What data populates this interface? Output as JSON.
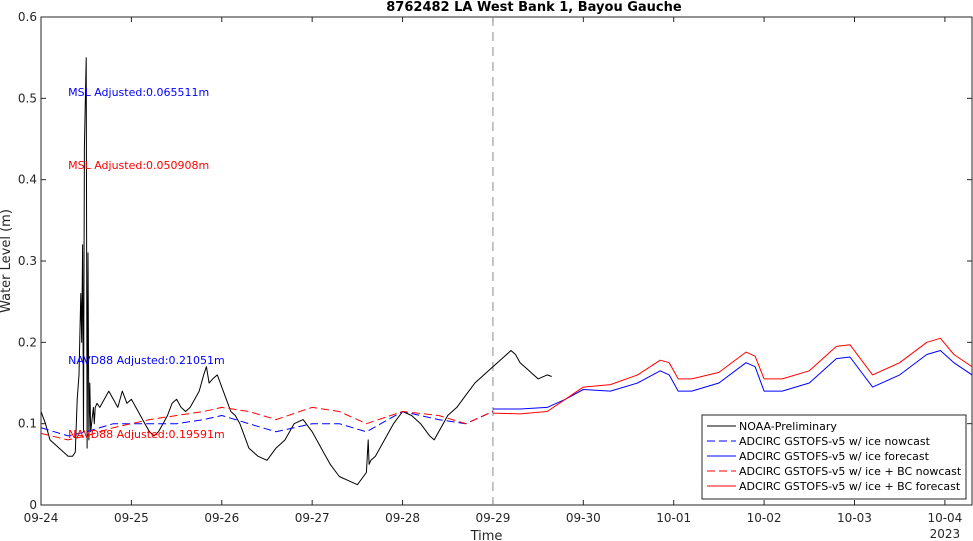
{
  "chart_data": {
    "type": "line",
    "title": "8762482 LA West Bank 1, Bayou Gauche",
    "xlabel": "Time",
    "ylabel": "Water Level (m)",
    "year_label": "2023",
    "xlim": [
      0,
      10.3
    ],
    "ylim": [
      0,
      0.6
    ],
    "y_ticks": [
      0,
      0.1,
      0.2,
      0.3,
      0.4,
      0.5,
      0.6
    ],
    "y_tick_labels": [
      "0",
      "0.1",
      "0.2",
      "0.3",
      "0.4",
      "0.5",
      "0.6"
    ],
    "x_ticks": [
      0,
      1,
      2,
      3,
      4,
      5,
      6,
      7,
      8,
      9,
      10
    ],
    "x_tick_labels": [
      "09-24",
      "09-25",
      "09-26",
      "09-27",
      "09-28",
      "09-29",
      "09-30",
      "10-01",
      "10-02",
      "10-03",
      "10-04"
    ],
    "nowcast_forecast_divider_x": 5,
    "grid": false,
    "legend_position": "bottom-right",
    "annotations": [
      {
        "text": "MSL Adjusted:0.065511m",
        "x": 0.3,
        "y": 0.508,
        "color": "#0000ff"
      },
      {
        "text": "MSL Adjusted:0.050908m",
        "x": 0.3,
        "y": 0.418,
        "color": "#ff0000"
      },
      {
        "text": "NAVD88 Adjusted:0.21051m",
        "x": 0.3,
        "y": 0.178,
        "color": "#0000ff"
      },
      {
        "text": "NAVD88 Adjusted:0.19591m",
        "x": 0.3,
        "y": 0.087,
        "color": "#ff0000"
      }
    ],
    "series": [
      {
        "name": "NOAA-Preliminary",
        "color": "#000000",
        "dash": "solid",
        "x": [
          0,
          0.05,
          0.1,
          0.15,
          0.2,
          0.25,
          0.3,
          0.35,
          0.38,
          0.4,
          0.42,
          0.44,
          0.45,
          0.46,
          0.47,
          0.48,
          0.5,
          0.51,
          0.52,
          0.53,
          0.54,
          0.55,
          0.56,
          0.57,
          0.58,
          0.59,
          0.6,
          0.62,
          0.65,
          0.7,
          0.75,
          0.8,
          0.85,
          0.9,
          0.95,
          1.0,
          1.05,
          1.1,
          1.15,
          1.2,
          1.25,
          1.3,
          1.35,
          1.4,
          1.45,
          1.5,
          1.55,
          1.6,
          1.65,
          1.7,
          1.75,
          1.8,
          1.83,
          1.86,
          1.9,
          1.95,
          2.0,
          2.05,
          2.1,
          2.15,
          2.2,
          2.3,
          2.4,
          2.5,
          2.6,
          2.7,
          2.8,
          2.9,
          3.0,
          3.1,
          3.2,
          3.3,
          3.4,
          3.5,
          3.6,
          3.62,
          3.63,
          3.65,
          3.7,
          3.8,
          3.9,
          4.0,
          4.1,
          4.2,
          4.3,
          4.35,
          4.4,
          4.45,
          4.5,
          4.6,
          4.7,
          4.8,
          4.9,
          5.0,
          5.1,
          5.2,
          5.25,
          5.3,
          5.4,
          5.5,
          5.6,
          5.65
        ],
        "y": [
          0.115,
          0.1,
          0.08,
          0.075,
          0.07,
          0.065,
          0.06,
          0.06,
          0.065,
          0.13,
          0.16,
          0.26,
          0.2,
          0.32,
          0.09,
          0.44,
          0.55,
          0.07,
          0.31,
          0.08,
          0.15,
          0.09,
          0.1,
          0.11,
          0.12,
          0.1,
          0.12,
          0.125,
          0.12,
          0.13,
          0.14,
          0.13,
          0.12,
          0.14,
          0.125,
          0.13,
          0.12,
          0.11,
          0.1,
          0.09,
          0.085,
          0.09,
          0.1,
          0.11,
          0.125,
          0.13,
          0.12,
          0.115,
          0.12,
          0.13,
          0.14,
          0.16,
          0.17,
          0.15,
          0.155,
          0.16,
          0.145,
          0.13,
          0.115,
          0.11,
          0.1,
          0.07,
          0.06,
          0.055,
          0.07,
          0.08,
          0.1,
          0.105,
          0.09,
          0.07,
          0.05,
          0.035,
          0.03,
          0.025,
          0.04,
          0.08,
          0.05,
          0.055,
          0.06,
          0.08,
          0.1,
          0.115,
          0.11,
          0.1,
          0.085,
          0.08,
          0.09,
          0.1,
          0.11,
          0.12,
          0.135,
          0.15,
          0.16,
          0.17,
          0.18,
          0.19,
          0.185,
          0.175,
          0.165,
          0.155,
          0.16,
          0.158
        ]
      },
      {
        "name": "ADCIRC GSTOFS-v5 w/ ice nowcast",
        "color": "#0000ff",
        "dash": "dashed",
        "x": [
          0,
          0.3,
          0.5,
          0.8,
          1.2,
          1.5,
          1.8,
          2.0,
          2.3,
          2.6,
          3.0,
          3.3,
          3.6,
          4.0,
          4.4,
          4.7,
          5.0
        ],
        "y": [
          0.095,
          0.085,
          0.09,
          0.1,
          0.1,
          0.1,
          0.105,
          0.11,
          0.1,
          0.09,
          0.1,
          0.1,
          0.09,
          0.115,
          0.105,
          0.1,
          0.115
        ]
      },
      {
        "name": "ADCIRC GSTOFS-v5 w/ ice forecast",
        "color": "#0000ff",
        "dash": "solid",
        "x": [
          5.0,
          5.3,
          5.6,
          5.8,
          6.0,
          6.3,
          6.6,
          6.85,
          6.95,
          7.05,
          7.2,
          7.5,
          7.8,
          7.9,
          8.0,
          8.2,
          8.5,
          8.8,
          8.95,
          9.2,
          9.5,
          9.8,
          9.95,
          10.1,
          10.3
        ],
        "y": [
          0.118,
          0.118,
          0.12,
          0.13,
          0.142,
          0.14,
          0.15,
          0.165,
          0.16,
          0.14,
          0.14,
          0.15,
          0.175,
          0.17,
          0.14,
          0.14,
          0.15,
          0.18,
          0.182,
          0.145,
          0.16,
          0.185,
          0.19,
          0.175,
          0.16
        ]
      },
      {
        "name": "ADCIRC GSTOFS-v5 w/ ice + BC nowcast",
        "color": "#ff0000",
        "dash": "dashed",
        "x": [
          0,
          0.3,
          0.5,
          0.8,
          1.2,
          1.5,
          1.8,
          2.0,
          2.3,
          2.6,
          3.0,
          3.3,
          3.6,
          4.0,
          4.4,
          4.7,
          5.0
        ],
        "y": [
          0.088,
          0.08,
          0.085,
          0.095,
          0.105,
          0.11,
          0.115,
          0.12,
          0.115,
          0.105,
          0.12,
          0.115,
          0.1,
          0.115,
          0.11,
          0.1,
          0.115
        ]
      },
      {
        "name": "ADCIRC GSTOFS-v5 w/ ice + BC forecast",
        "color": "#ff0000",
        "dash": "solid",
        "x": [
          5.0,
          5.3,
          5.6,
          5.8,
          6.0,
          6.3,
          6.6,
          6.85,
          6.95,
          7.05,
          7.2,
          7.5,
          7.8,
          7.9,
          8.0,
          8.2,
          8.5,
          8.8,
          8.95,
          9.2,
          9.5,
          9.8,
          9.95,
          10.1,
          10.3
        ],
        "y": [
          0.113,
          0.112,
          0.115,
          0.13,
          0.145,
          0.148,
          0.16,
          0.178,
          0.175,
          0.155,
          0.155,
          0.163,
          0.188,
          0.183,
          0.155,
          0.155,
          0.165,
          0.195,
          0.197,
          0.16,
          0.175,
          0.2,
          0.205,
          0.185,
          0.17
        ]
      }
    ]
  }
}
